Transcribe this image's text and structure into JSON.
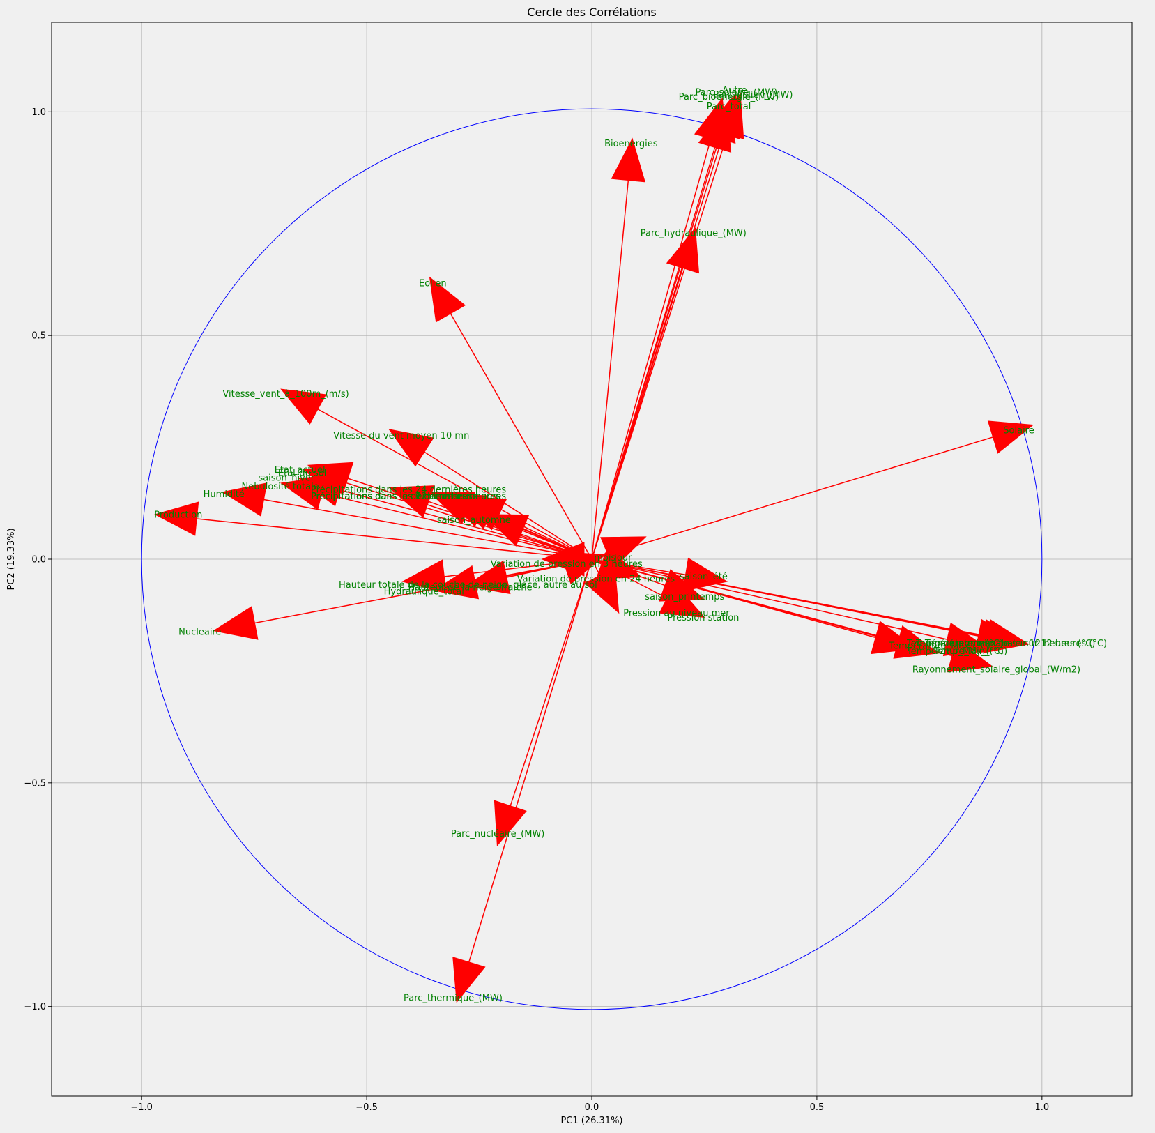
{
  "chart_data": {
    "type": "scatter",
    "title": "Cercle des Corrélations",
    "xlabel": "PC1 (26.31%)",
    "ylabel": "PC2 (19.33%)",
    "xlim": [
      -1.2,
      1.2
    ],
    "ylim": [
      -1.2,
      1.2
    ],
    "xticks": [
      -1.0,
      -0.5,
      0.0,
      0.5,
      1.0
    ],
    "yticks": [
      -1.0,
      -0.5,
      0.0,
      0.5,
      1.0
    ],
    "xtick_labels": [
      "−1.0",
      "−0.5",
      "0.0",
      "0.5",
      "1.0"
    ],
    "ytick_labels": [
      "−1.0",
      "−0.5",
      "0.0",
      "0.5",
      "1.0"
    ],
    "grid": true,
    "unit_circle_radius": 1.0,
    "colors": {
      "circle": "#0000ff",
      "arrow": "#ff0000",
      "label": "#008000",
      "grid": "#b0b0b0"
    },
    "variables": [
      {
        "name": "Parc_solaire_(MW)",
        "x": 0.33,
        "y": 1.04
      },
      {
        "name": "Autre",
        "x": 0.32,
        "y": 1.04
      },
      {
        "name": "Parc_bioenergie_(MW)",
        "x": 0.29,
        "y": 1.03
      },
      {
        "name": "Parc_eolien_(MW)",
        "x": 0.31,
        "y": 1.03
      },
      {
        "name": "Parc_total",
        "x": 0.3,
        "y": 1.01
      },
      {
        "name": "Bioenergies",
        "x": 0.09,
        "y": 0.94
      },
      {
        "name": "Parc_hydraulique_(MW)",
        "x": 0.23,
        "y": 0.74
      },
      {
        "name": "Eolien",
        "x": -0.36,
        "y": 0.63
      },
      {
        "name": "Solaire",
        "x": 0.98,
        "y": 0.3
      },
      {
        "name": "Vitesse_vent_à_100m_(m/s)",
        "x": -0.69,
        "y": 0.38
      },
      {
        "name": "Vitesse du vent moyen 10 mn",
        "x": -0.45,
        "y": 0.29
      },
      {
        "name": "Etat_actuel",
        "x": -0.63,
        "y": 0.21
      },
      {
        "name": "Etat du sol",
        "x": -0.64,
        "y": 0.2
      },
      {
        "name": "saison_hiver",
        "x": -0.65,
        "y": 0.18
      },
      {
        "name": "Nebulosité totale",
        "x": -0.69,
        "y": 0.17
      },
      {
        "name": "Humidité",
        "x": -0.82,
        "y": 0.15
      },
      {
        "name": "Production",
        "x": -0.97,
        "y": 0.1
      },
      {
        "name": "Précipitations dans les 24 dernières heures",
        "x": -0.45,
        "y": 0.16
      },
      {
        "name": "Précipitations dans les 12 dernières heures",
        "x": -0.36,
        "y": 0.15
      },
      {
        "name": "Précipitations dans les 6 dernières heures",
        "x": -0.33,
        "y": 0.145
      },
      {
        "name": "Précipitations dans les 3 dernières heures",
        "x": -0.31,
        "y": 0.14
      },
      {
        "name": "Précipitations dans la dernière heure",
        "x": -0.29,
        "y": 0.14
      },
      {
        "name": "saison_automne",
        "x": -0.24,
        "y": 0.1
      },
      {
        "name": "Variation de pression en 3 heures",
        "x": -0.11,
        "y": 0.0
      },
      {
        "name": "mois",
        "x": 0.03,
        "y": 0.01
      },
      {
        "name": "Variation de pression en 24 heures",
        "x": 0.11,
        "y": -0.04
      },
      {
        "name": "saison_été",
        "x": 0.3,
        "y": -0.05
      },
      {
        "name": "jour",
        "x": 0.12,
        "y": 0.05
      },
      {
        "name": "Hauteur totale de la couche de neige, glace, autre au sol",
        "x": -0.42,
        "y": -0.05
      },
      {
        "name": "Hauteur de la neige fraîche",
        "x": -0.28,
        "y": -0.06
      },
      {
        "name": "Hydraulique_total",
        "x": -0.35,
        "y": -0.07
      },
      {
        "name": "Nucleaire",
        "x": -0.84,
        "y": -0.16
      },
      {
        "name": "Pression au niveau mer",
        "x": 0.06,
        "y": -0.12
      },
      {
        "name": "saison_printemps",
        "x": 0.25,
        "y": -0.09
      },
      {
        "name": "Pression station",
        "x": 0.25,
        "y": -0.13
      },
      {
        "name": "Température minimale sur 12 heures (°C)",
        "x": 0.97,
        "y": -0.19
      },
      {
        "name": "Température maximale sur 12 heures (°C)",
        "x": 0.96,
        "y": -0.19
      },
      {
        "name": "Température (°C)",
        "x": 0.95,
        "y": -0.19
      },
      {
        "name": "Température_Max (°C)",
        "x": 0.72,
        "y": -0.2
      },
      {
        "name": "Température_Min_(°C)",
        "x": 0.77,
        "y": -0.21
      },
      {
        "name": "Temp_Moy_(°C)",
        "x": 0.88,
        "y": -0.2
      },
      {
        "name": "Rayonnement_solaire_global_(W/m2)",
        "x": 0.89,
        "y": -0.24
      },
      {
        "name": "Parc_nucléaire_(MW)",
        "x": -0.21,
        "y": -0.64
      },
      {
        "name": "Parc_thermique_(MW)",
        "x": -0.3,
        "y": -0.99
      }
    ],
    "labels": [
      {
        "text": "Parc_solaire_(MW)",
        "x": 0.23,
        "y": 1.044
      },
      {
        "text": "Autre",
        "x": 0.29,
        "y": 1.049
      },
      {
        "text": "Parc_bioenergie_(MW)",
        "x": 0.193,
        "y": 1.034
      },
      {
        "text": "Parc_eolien_(MW)",
        "x": 0.27,
        "y": 1.039
      },
      {
        "text": "Parc_total",
        "x": 0.255,
        "y": 1.012
      },
      {
        "text": "Bioenergies",
        "x": 0.028,
        "y": 0.93
      },
      {
        "text": "Parc_hydraulique_(MW)",
        "x": 0.108,
        "y": 0.729
      },
      {
        "text": "Eolien",
        "x": -0.384,
        "y": 0.617
      },
      {
        "text": "Solaire",
        "x": 0.914,
        "y": 0.288
      },
      {
        "text": "Vitesse_vent_à_100m_(m/s)",
        "x": -0.82,
        "y": 0.37
      },
      {
        "text": "Vitesse du vent moyen 10 mn",
        "x": -0.574,
        "y": 0.277
      },
      {
        "text": "Etat_actuel",
        "x": -0.705,
        "y": 0.2
      },
      {
        "text": "Etat du sol",
        "x": -0.697,
        "y": 0.193
      },
      {
        "text": "saison_hiver",
        "x": -0.741,
        "y": 0.182
      },
      {
        "text": "Nebulosité totale",
        "x": -0.778,
        "y": 0.163
      },
      {
        "text": "Humidité",
        "x": -0.863,
        "y": 0.146
      },
      {
        "text": "Production",
        "x": -0.972,
        "y": 0.1
      },
      {
        "text": "Précipitations dans les 24 dernières heures",
        "x": -0.624,
        "y": 0.156
      },
      {
        "text": "Précipitations dans les 12 dernières heures",
        "x": -0.624,
        "y": 0.141
      },
      {
        "text": "Précipitations dans les 6 dernières heures",
        "x": -0.624,
        "y": 0.141
      },
      {
        "text": "Précipitations dans les 3 dernières heures",
        "x": -0.624,
        "y": 0.141
      },
      {
        "text": "Précipitations dans la dernière heure",
        "x": -0.624,
        "y": 0.141
      },
      {
        "text": "saison_automne",
        "x": -0.344,
        "y": 0.088
      },
      {
        "text": "Variation de pression en 3 heures",
        "x": -0.225,
        "y": -0.01
      },
      {
        "text": "mois",
        "x": 0.005,
        "y": 0.004
      },
      {
        "text": "Variation de pression en 24 heures",
        "x": -0.166,
        "y": -0.044
      },
      {
        "text": "saison_été",
        "x": 0.195,
        "y": -0.038
      },
      {
        "text": "jour",
        "x": 0.05,
        "y": 0.004
      },
      {
        "text": "Hauteur totale de la couche de neige, glace, autre au sol",
        "x": -0.562,
        "y": -0.057
      },
      {
        "text": "Hauteur de la neige fraîche",
        "x": -0.408,
        "y": -0.062
      },
      {
        "text": "Hydraulique_total",
        "x": -0.462,
        "y": -0.072
      },
      {
        "text": "Nucleaire",
        "x": -0.918,
        "y": -0.162
      },
      {
        "text": "Pression au niveau mer",
        "x": 0.07,
        "y": -0.12
      },
      {
        "text": "saison_printemps",
        "x": 0.118,
        "y": -0.083
      },
      {
        "text": "Pression station",
        "x": 0.168,
        "y": -0.13
      },
      {
        "text": "Température minimale sur 12 heures (°C)",
        "x": 0.7,
        "y": -0.188
      },
      {
        "text": "Température maximale sur 12 heures (°C)",
        "x": 0.72,
        "y": -0.188
      },
      {
        "text": "Température (°C)",
        "x": 0.74,
        "y": -0.188
      },
      {
        "text": "Température_Max (°C)",
        "x": 0.66,
        "y": -0.193
      },
      {
        "text": "Température_Min_(°C)",
        "x": 0.7,
        "y": -0.205
      },
      {
        "text": "Temp_Moy_(°C)",
        "x": 0.76,
        "y": -0.205
      },
      {
        "text": "Rayonnement_solaire_global_(W/m2)",
        "x": 0.712,
        "y": -0.246
      },
      {
        "text": "Parc_nucléaire_(MW)",
        "x": -0.313,
        "y": -0.613
      },
      {
        "text": "Parc_thermique_(MW)",
        "x": -0.418,
        "y": -0.98
      }
    ]
  }
}
